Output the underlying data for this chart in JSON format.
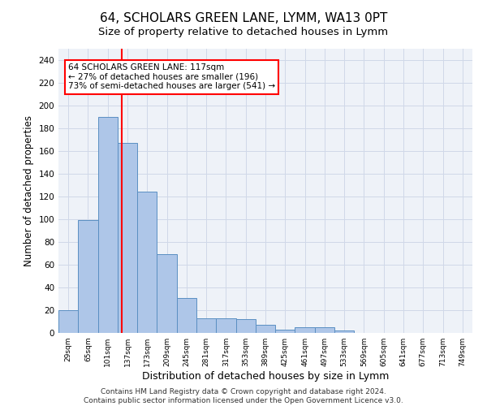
{
  "title1": "64, SCHOLARS GREEN LANE, LYMM, WA13 0PT",
  "title2": "Size of property relative to detached houses in Lymm",
  "xlabel": "Distribution of detached houses by size in Lymm",
  "ylabel": "Number of detached properties",
  "bin_labels": [
    "29sqm",
    "65sqm",
    "101sqm",
    "137sqm",
    "173sqm",
    "209sqm",
    "245sqm",
    "281sqm",
    "317sqm",
    "353sqm",
    "389sqm",
    "425sqm",
    "461sqm",
    "497sqm",
    "533sqm",
    "569sqm",
    "605sqm",
    "641sqm",
    "677sqm",
    "713sqm",
    "749sqm"
  ],
  "bar_values": [
    20,
    99,
    190,
    167,
    124,
    69,
    31,
    13,
    13,
    12,
    7,
    3,
    5,
    5,
    2,
    0,
    0,
    0,
    0,
    0,
    0
  ],
  "bar_color": "#aec6e8",
  "bar_edge_color": "#5a8fc2",
  "red_line_x": 2.72,
  "annotation_text": "64 SCHOLARS GREEN LANE: 117sqm\n← 27% of detached houses are smaller (196)\n73% of semi-detached houses are larger (541) →",
  "annotation_box_color": "white",
  "annotation_box_edge_color": "red",
  "ylim": [
    0,
    250
  ],
  "yticks": [
    0,
    20,
    40,
    60,
    80,
    100,
    120,
    140,
    160,
    180,
    200,
    220,
    240
  ],
  "grid_color": "#d0d8e8",
  "bg_color": "#eef2f8",
  "footer": "Contains HM Land Registry data © Crown copyright and database right 2024.\nContains public sector information licensed under the Open Government Licence v3.0.",
  "title1_fontsize": 11,
  "title2_fontsize": 9.5,
  "xlabel_fontsize": 9,
  "ylabel_fontsize": 8.5,
  "footer_fontsize": 6.5,
  "annot_fontsize": 7.5
}
